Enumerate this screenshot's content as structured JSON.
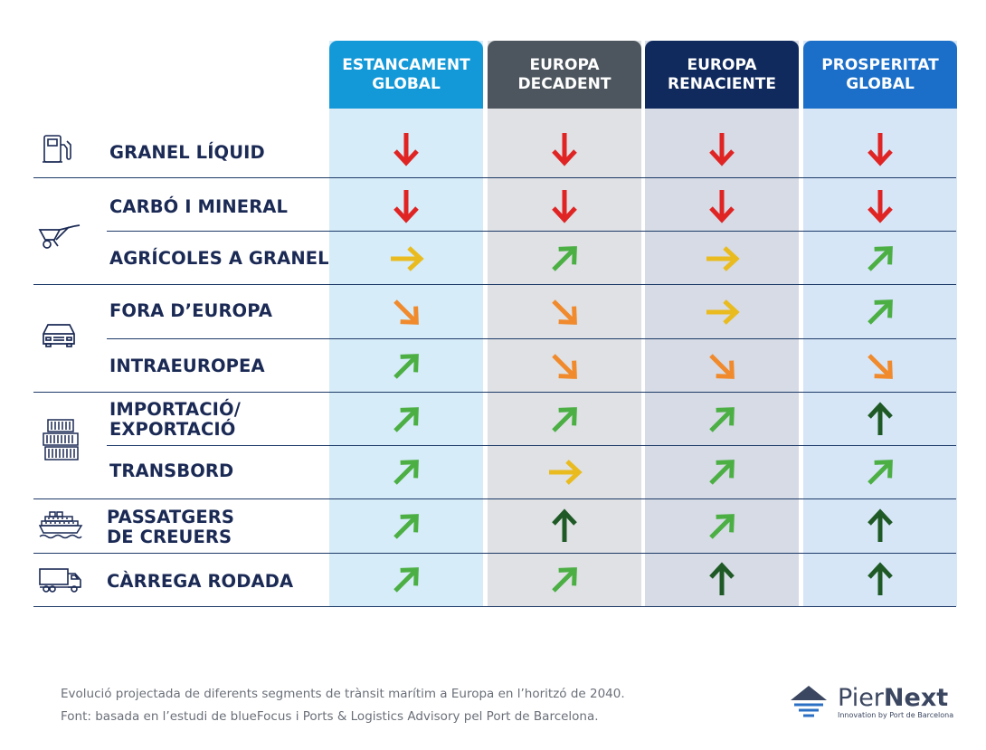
{
  "chart_data": {
    "type": "table",
    "columns": [
      {
        "line1": "ESTANCAMENT",
        "line2": "GLOBAL",
        "color": "#1499d8",
        "bg": "#d6ecf8"
      },
      {
        "line1": "EUROPA",
        "line2": "DECADENT",
        "color": "#4d565e",
        "bg": "#dfe1e4"
      },
      {
        "line1": "EUROPA",
        "line2": "RENACIENTE",
        "color": "#102a5e",
        "bg": "#d6dbe5"
      },
      {
        "line1": "PROSPERITAT",
        "line2": "GLOBAL",
        "color": "#1b6fc8",
        "bg": "#d6e6f7"
      }
    ],
    "rows": [
      {
        "group": "liquid-bulk",
        "label1": "GRANEL LÍQUID",
        "label2": "",
        "values": [
          "strong-down",
          "strong-down",
          "strong-down",
          "strong-down"
        ]
      },
      {
        "group": "dry-bulk",
        "label1": "CARBÓ I MINERAL",
        "label2": "",
        "values": [
          "strong-down",
          "strong-down",
          "strong-down",
          "strong-down"
        ]
      },
      {
        "group": "dry-bulk",
        "label1": "AGRÍCOLES A GRANEL",
        "label2": "",
        "values": [
          "stable",
          "up",
          "stable",
          "up"
        ]
      },
      {
        "group": "vehicles",
        "label1": "FORA D’EUROPA",
        "label2": "",
        "values": [
          "down",
          "down",
          "stable",
          "up"
        ]
      },
      {
        "group": "vehicles",
        "label1": "INTRAEUROPEA",
        "label2": "",
        "values": [
          "up",
          "down",
          "down",
          "down"
        ]
      },
      {
        "group": "containers",
        "label1": "IMPORTACIÓ/",
        "label2": "EXPORTACIÓ",
        "values": [
          "up",
          "up",
          "up",
          "strong-up"
        ]
      },
      {
        "group": "containers",
        "label1": "TRANSBORD",
        "label2": "",
        "values": [
          "up",
          "stable",
          "up",
          "up"
        ]
      },
      {
        "group": "cruise",
        "label1": "PASSATGERS",
        "label2": "DE CREUERS",
        "values": [
          "up",
          "strong-up",
          "up",
          "strong-up"
        ]
      },
      {
        "group": "ro-ro",
        "label1": "CÀRREGA RODADA",
        "label2": "",
        "values": [
          "up",
          "up",
          "strong-up",
          "strong-up"
        ]
      }
    ],
    "arrow_colors": {
      "strong-down": "#e02424",
      "down": "#f08a2c",
      "stable": "#e9bb1f",
      "up": "#4caf44",
      "strong-up": "#1f5a26"
    }
  },
  "footer": {
    "line1": "Evolució projectada de diferents segments de trànsit marítim a Europa en l’horitzó de 2040.",
    "line2": "Font: basada en l’estudi de blueFocus i Ports & Logistics Advisory pel Port de Barcelona."
  },
  "logo": {
    "name_light": "Pier",
    "name_bold": "Next",
    "tagline": "Innovation by Port de Barcelona"
  },
  "icons": [
    "fuel-pump-icon",
    "wheelbarrow-icon",
    "car-icon",
    "containers-icon",
    "cruise-ship-icon",
    "truck-icon"
  ]
}
